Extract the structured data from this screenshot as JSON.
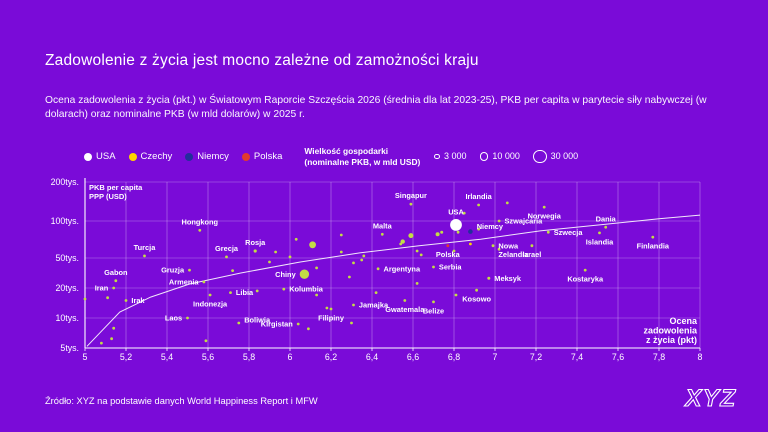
{
  "header": {
    "title": "Zadowolenie z życia jest mocno zależne od zamożności kraju",
    "subtitle": "Ocena zadowolenia z życia (pkt.) w Światowym Raporcie Szczęścia 2026 (średnia dla lat 2023-25), PKB per capita w parytecie siły nabywczej (w dolarach) oraz nominalne PKB (w mld dolarów) w 2025 r."
  },
  "colors": {
    "background": "#7a0bd8",
    "default": "#c3dc46",
    "white": "#ffffff",
    "yellow": "#ffd500",
    "navy": "#232e9c",
    "red": "#e23a2e",
    "grid": "rgba(255,255,255,0.45)",
    "axis": "#ffffff",
    "trend": "rgba(255,255,255,0.9)"
  },
  "legend": {
    "series": [
      {
        "label": "USA",
        "color": "white"
      },
      {
        "label": "Czechy",
        "color": "yellow"
      },
      {
        "label": "Niemcy",
        "color": "navy"
      },
      {
        "label": "Polska",
        "color": "red"
      }
    ],
    "size_title": "Wielkość gospodarki\n(nominalne PKB, w mld USD)",
    "size_items": [
      {
        "label": "3 000",
        "gdp": 3000
      },
      {
        "label": "10 000",
        "gdp": 10000
      },
      {
        "label": "30 000",
        "gdp": 30000
      }
    ]
  },
  "chart_data": {
    "type": "scatter",
    "x_axis": {
      "label": "Ocena\nzadowolenia\nz życia (pkt)",
      "min": 5,
      "max": 8,
      "step": 0.2,
      "tick_labels": [
        "5",
        "5,2",
        "5,4",
        "5,6",
        "5,8",
        "6",
        "6,2",
        "6,4",
        "6,6",
        "6,8",
        "7",
        "7,2",
        "7,4",
        "7,6",
        "7,8",
        "8"
      ]
    },
    "y_axis": {
      "label": "PKB per capita\nPPP (USD)",
      "scale": "log-like",
      "ticks": [
        {
          "value": 200000,
          "label": "200tys."
        },
        {
          "value": 100000,
          "label": "100tys."
        },
        {
          "value": 50000,
          "label": "50tys."
        },
        {
          "value": 20000,
          "label": "20tys."
        },
        {
          "value": 10000,
          "label": "10tys."
        },
        {
          "value": 5000,
          "label": "5tys."
        }
      ]
    },
    "size_encoding": "nominalne PKB w mld USD",
    "points": [
      {
        "n": "Iran",
        "x": 5.14,
        "y": 20000,
        "g": 400,
        "lp": "l"
      },
      {
        "n": "Gabon",
        "x": 5.15,
        "y": 25000,
        "g": 21,
        "lp": "a"
      },
      {
        "n": "Irak",
        "x": 5.2,
        "y": 15000,
        "g": 270,
        "lp": "r"
      },
      {
        "n": "Turcja",
        "x": 5.29,
        "y": 52000,
        "g": 1400,
        "lp": "a"
      },
      {
        "n": "Laos",
        "x": 5.5,
        "y": 10000,
        "g": 16,
        "lp": "l"
      },
      {
        "n": "Gruzja",
        "x": 5.51,
        "y": 34500,
        "g": 35,
        "lp": "l"
      },
      {
        "n": "Armenia",
        "x": 5.58,
        "y": 24000,
        "g": 26,
        "lp": "l"
      },
      {
        "n": "Hongkong",
        "x": 5.56,
        "y": 84000,
        "g": 410,
        "lp": "a"
      },
      {
        "n": "Indonezja",
        "x": 5.61,
        "y": 17000,
        "g": 1450,
        "lp": "b"
      },
      {
        "n": "Libia",
        "x": 5.71,
        "y": 18000,
        "g": 45,
        "lp": "r"
      },
      {
        "n": "Grecja",
        "x": 5.69,
        "y": 51000,
        "g": 250,
        "lp": "a"
      },
      {
        "n": "Boliwia",
        "x": 5.75,
        "y": 8900,
        "g": 50,
        "lp": "r",
        "dy": -3
      },
      {
        "n": "Rosja",
        "x": 5.83,
        "y": 57000,
        "g": 2200,
        "lp": "a"
      },
      {
        "n": "Kirgistan",
        "x": 6.04,
        "y": 8700,
        "g": 15,
        "lp": "l"
      },
      {
        "n": "Chiny",
        "x": 6.07,
        "y": 30500,
        "g": 19000,
        "lp": "l"
      },
      {
        "n": "Kolumbia",
        "x": 5.97,
        "y": 19500,
        "g": 420,
        "lp": "r"
      },
      {
        "n": "Filipiny",
        "x": 6.2,
        "y": 12300,
        "g": 470,
        "lp": "b"
      },
      {
        "n": "Jamajka",
        "x": 6.31,
        "y": 13500,
        "g": 20,
        "lp": "r"
      },
      {
        "n": "Gwatemala",
        "x": 6.56,
        "y": 15000,
        "g": 110,
        "lp": "b"
      },
      {
        "n": "Belize",
        "x": 6.7,
        "y": 14500,
        "g": 3,
        "lp": "b"
      },
      {
        "n": "Malta",
        "x": 6.45,
        "y": 78000,
        "g": 22,
        "lp": "a"
      },
      {
        "n": "Singapur",
        "x": 6.59,
        "y": 135000,
        "g": 530,
        "lp": "a"
      },
      {
        "n": "Argentyna",
        "x": 6.43,
        "y": 36000,
        "g": 650,
        "lp": "r"
      },
      {
        "n": "Serbia",
        "x": 6.7,
        "y": 38000,
        "g": 80,
        "lp": "r"
      },
      {
        "n": "USA",
        "x": 6.81,
        "y": 93000,
        "g": 30000,
        "c": "white",
        "lp": "a"
      },
      {
        "n": "Niemcy",
        "x": 6.88,
        "y": 82000,
        "g": 4700,
        "c": "navy",
        "lp": "r",
        "dy": -5
      },
      {
        "n": "Polska",
        "x": 6.77,
        "y": 63000,
        "g": 900,
        "c": "red",
        "lp": "b"
      },
      {
        "n": "Czechy",
        "x": 6.88,
        "y": 65000,
        "g": 360,
        "c": "yellow",
        "lp": ""
      },
      {
        "n": "Irlandia",
        "x": 6.92,
        "y": 133000,
        "g": 560,
        "lp": "a"
      },
      {
        "n": "Szwajcaria",
        "x": 7.02,
        "y": 100000,
        "g": 940,
        "lp": "r"
      },
      {
        "n": "Nowa\nZelandia",
        "x": 6.99,
        "y": 63000,
        "g": 260,
        "lp": "r"
      },
      {
        "n": "Izrael",
        "x": 7.18,
        "y": 63000,
        "g": 540,
        "lp": "b"
      },
      {
        "n": "Norwegia",
        "x": 7.24,
        "y": 128000,
        "g": 500,
        "lp": "b"
      },
      {
        "n": "Szwecja",
        "x": 7.26,
        "y": 81000,
        "g": 620,
        "lp": "r"
      },
      {
        "n": "Meksyk",
        "x": 6.97,
        "y": 27000,
        "g": 1900,
        "lp": "r"
      },
      {
        "n": "Kosowo",
        "x": 6.91,
        "y": 19000,
        "g": 11,
        "lp": "b"
      },
      {
        "n": "Kostaryka",
        "x": 7.44,
        "y": 34500,
        "g": 95,
        "lp": "b"
      },
      {
        "n": "Dania",
        "x": 7.54,
        "y": 89000,
        "g": 430,
        "lp": "a"
      },
      {
        "n": "Islandia",
        "x": 7.51,
        "y": 80000,
        "g": 33,
        "lp": "b"
      },
      {
        "n": "Finlandia",
        "x": 7.77,
        "y": 74000,
        "g": 300,
        "lp": "b"
      },
      {
        "n": null,
        "x": 5.0,
        "y": 15500,
        "g": 200
      },
      {
        "n": null,
        "x": 5.08,
        "y": 5600,
        "g": 100
      },
      {
        "n": null,
        "x": 5.13,
        "y": 6200,
        "g": 60
      },
      {
        "n": null,
        "x": 5.14,
        "y": 7900,
        "g": 80
      },
      {
        "n": null,
        "x": 5.11,
        "y": 16000,
        "g": 50
      },
      {
        "n": null,
        "x": 5.59,
        "y": 5900,
        "g": 60
      },
      {
        "n": null,
        "x": 5.72,
        "y": 34000,
        "g": 90
      },
      {
        "n": null,
        "x": 5.84,
        "y": 18700,
        "g": 250
      },
      {
        "n": null,
        "x": 5.9,
        "y": 44300,
        "g": 120
      },
      {
        "n": null,
        "x": 5.93,
        "y": 56000,
        "g": 500
      },
      {
        "n": null,
        "x": 6.0,
        "y": 51000,
        "g": 180
      },
      {
        "n": null,
        "x": 6.03,
        "y": 71000,
        "g": 150
      },
      {
        "n": null,
        "x": 6.11,
        "y": 64000,
        "g": 10000
      },
      {
        "n": null,
        "x": 6.13,
        "y": 37000,
        "g": 200
      },
      {
        "n": null,
        "x": 6.13,
        "y": 17000,
        "g": 160
      },
      {
        "n": null,
        "x": 6.09,
        "y": 7800,
        "g": 70
      },
      {
        "n": null,
        "x": 6.18,
        "y": 12600,
        "g": 100
      },
      {
        "n": null,
        "x": 6.25,
        "y": 77000,
        "g": 140
      },
      {
        "n": null,
        "x": 6.25,
        "y": 56000,
        "g": 220
      },
      {
        "n": null,
        "x": 6.3,
        "y": 8900,
        "g": 50
      },
      {
        "n": null,
        "x": 6.31,
        "y": 43000,
        "g": 150
      },
      {
        "n": null,
        "x": 6.29,
        "y": 28000,
        "g": 300
      },
      {
        "n": null,
        "x": 6.35,
        "y": 47000,
        "g": 130
      },
      {
        "n": null,
        "x": 6.36,
        "y": 52000,
        "g": 700
      },
      {
        "n": null,
        "x": 6.42,
        "y": 18000,
        "g": 120
      },
      {
        "n": null,
        "x": 6.54,
        "y": 65000,
        "g": 1500
      },
      {
        "n": null,
        "x": 6.55,
        "y": 68000,
        "g": 4200
      },
      {
        "n": null,
        "x": 6.59,
        "y": 76000,
        "g": 5500
      },
      {
        "n": null,
        "x": 6.62,
        "y": 57000,
        "g": 300
      },
      {
        "n": null,
        "x": 6.62,
        "y": 23000,
        "g": 280
      },
      {
        "n": null,
        "x": 6.64,
        "y": 53000,
        "g": 250
      },
      {
        "n": null,
        "x": 6.72,
        "y": 78000,
        "g": 3500
      },
      {
        "n": null,
        "x": 6.74,
        "y": 81000,
        "g": 2000
      },
      {
        "n": null,
        "x": 6.8,
        "y": 57000,
        "g": 350
      },
      {
        "n": null,
        "x": 6.81,
        "y": 17000,
        "g": 90
      },
      {
        "n": null,
        "x": 6.82,
        "y": 81000,
        "g": 160
      },
      {
        "n": null,
        "x": 6.85,
        "y": 115000,
        "g": 180
      },
      {
        "n": null,
        "x": 6.92,
        "y": 86000,
        "g": 800
      },
      {
        "n": null,
        "x": 7.02,
        "y": 59000,
        "g": 220
      },
      {
        "n": null,
        "x": 7.06,
        "y": 138000,
        "g": 90
      }
    ],
    "trend": [
      {
        "x": 5.01,
        "y": 5200
      },
      {
        "x": 5.17,
        "y": 11500
      },
      {
        "x": 5.32,
        "y": 16200
      },
      {
        "x": 5.51,
        "y": 22600
      },
      {
        "x": 5.76,
        "y": 31600
      },
      {
        "x": 6.05,
        "y": 44300
      },
      {
        "x": 6.34,
        "y": 55000
      },
      {
        "x": 6.63,
        "y": 63000
      },
      {
        "x": 6.93,
        "y": 71000
      },
      {
        "x": 7.22,
        "y": 83000
      },
      {
        "x": 7.51,
        "y": 93000
      },
      {
        "x": 7.8,
        "y": 104000
      },
      {
        "x": 8.0,
        "y": 111000
      }
    ]
  },
  "footer": {
    "source": "Źródło:  XYZ na podstawie danych World Happiness Report i MFW",
    "logo": "XYZ"
  }
}
